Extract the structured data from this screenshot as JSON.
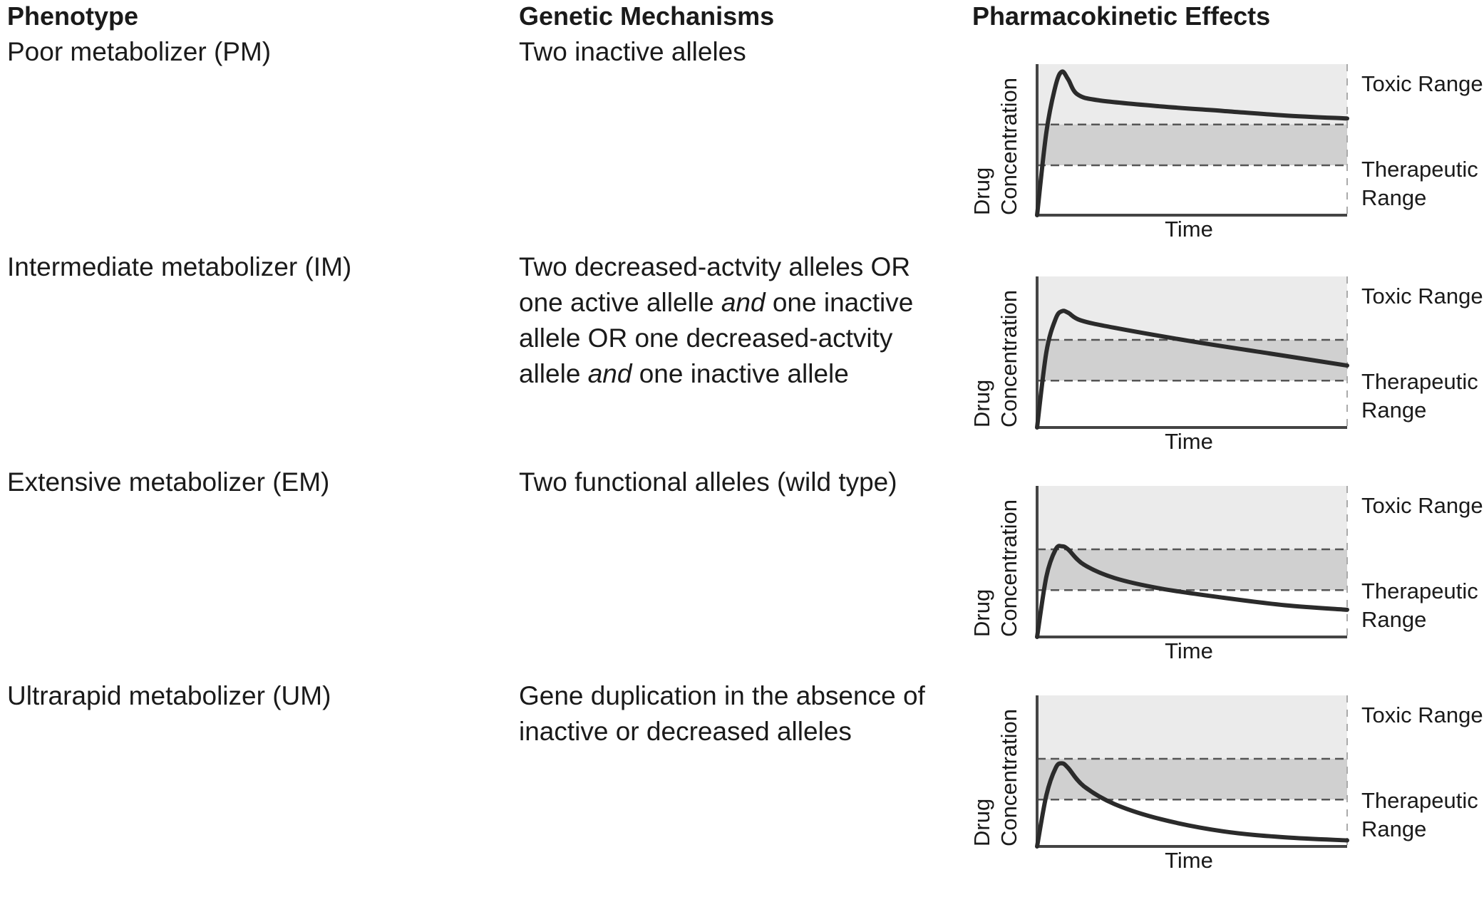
{
  "headers": {
    "phenotype": "Phenotype",
    "mechanisms": "Genetic Mechanisms",
    "effects": "Pharmacokinetic Effects"
  },
  "rows": [
    {
      "phenotype": "Poor metabolizer (PM)",
      "mechanism_parts": [
        {
          "t": "Two inactive alleles",
          "i": false
        }
      ],
      "curve": [
        [
          0,
          0
        ],
        [
          0.03,
          0.55
        ],
        [
          0.06,
          0.86
        ],
        [
          0.08,
          0.95
        ],
        [
          0.1,
          0.9
        ],
        [
          0.13,
          0.8
        ],
        [
          0.2,
          0.76
        ],
        [
          0.4,
          0.72
        ],
        [
          0.6,
          0.69
        ],
        [
          0.8,
          0.66
        ],
        [
          1,
          0.64
        ]
      ]
    },
    {
      "phenotype": "Intermediate metabolizer (IM)",
      "mechanism_parts": [
        {
          "t": "Two decreased-actvity alleles OR one active allelle ",
          "i": false
        },
        {
          "t": "and",
          "i": true
        },
        {
          "t": " one inactive allele OR one decreased-actvity allele ",
          "i": false
        },
        {
          "t": "and",
          "i": true
        },
        {
          "t": " one inactive allele",
          "i": false
        }
      ],
      "curve": [
        [
          0,
          0
        ],
        [
          0.03,
          0.5
        ],
        [
          0.06,
          0.72
        ],
        [
          0.08,
          0.77
        ],
        [
          0.1,
          0.76
        ],
        [
          0.14,
          0.71
        ],
        [
          0.25,
          0.66
        ],
        [
          0.5,
          0.57
        ],
        [
          0.75,
          0.49
        ],
        [
          1,
          0.41
        ]
      ]
    },
    {
      "phenotype": "Extensive metabolizer (EM)",
      "mechanism_parts": [
        {
          "t": "Two functional alleles (wild type)",
          "i": false
        }
      ],
      "curve": [
        [
          0,
          0
        ],
        [
          0.03,
          0.4
        ],
        [
          0.06,
          0.58
        ],
        [
          0.08,
          0.6
        ],
        [
          0.1,
          0.58
        ],
        [
          0.15,
          0.48
        ],
        [
          0.25,
          0.39
        ],
        [
          0.4,
          0.32
        ],
        [
          0.6,
          0.26
        ],
        [
          0.8,
          0.21
        ],
        [
          1,
          0.18
        ]
      ]
    },
    {
      "phenotype": "Ultrarapid metabolizer (UM)",
      "mechanism_parts": [
        {
          "t": "Gene duplication in the absence of inactive or decreased alleles",
          "i": false
        }
      ],
      "curve": [
        [
          0,
          0
        ],
        [
          0.03,
          0.34
        ],
        [
          0.06,
          0.52
        ],
        [
          0.08,
          0.55
        ],
        [
          0.1,
          0.52
        ],
        [
          0.15,
          0.4
        ],
        [
          0.25,
          0.28
        ],
        [
          0.4,
          0.18
        ],
        [
          0.6,
          0.1
        ],
        [
          0.8,
          0.06
        ],
        [
          1,
          0.04
        ]
      ]
    }
  ],
  "graph_labels": {
    "y_line1": "Drug",
    "y_line2": "Concentration",
    "x": "Time",
    "toxic": "Toxic Range",
    "therapeutic_line1": "Therapeutic",
    "therapeutic_line2": "Range"
  },
  "colors": {
    "toxic_band": "#ebebeb",
    "therapeutic_band": "#d0d0d0",
    "curve": "#2b2b2b"
  }
}
